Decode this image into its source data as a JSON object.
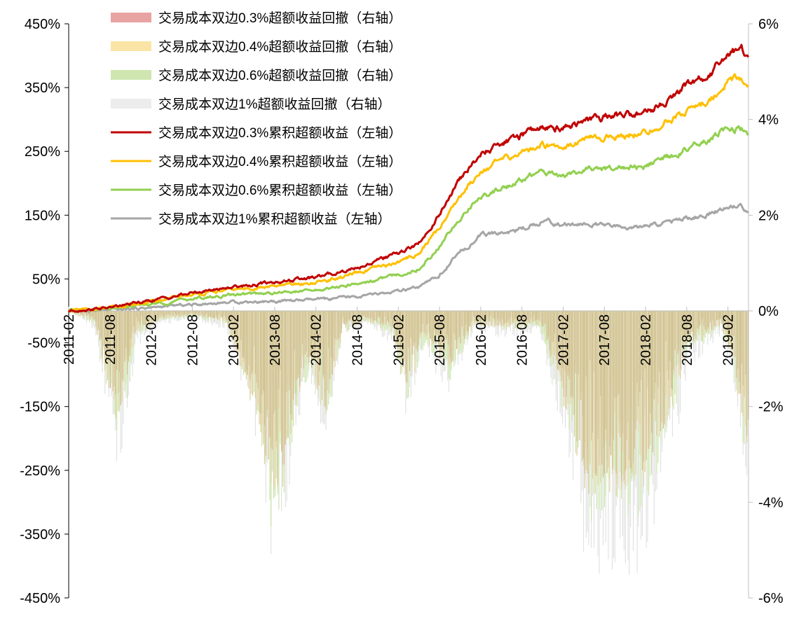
{
  "chart_data": {
    "type": "line+bar",
    "title": "",
    "left_axis": {
      "min": -450,
      "max": 450,
      "ticks": [
        450,
        350,
        250,
        150,
        50,
        -50,
        -150,
        -250,
        -350,
        -450
      ],
      "tick_labels": [
        "450%",
        "350%",
        "250%",
        "150%",
        "50%",
        "-50%",
        "-150%",
        "-250%",
        "-350%",
        "-450%"
      ]
    },
    "right_axis": {
      "min": -6,
      "max": 6,
      "ticks": [
        6,
        4,
        2,
        0,
        -2,
        -4,
        -6
      ],
      "tick_labels": [
        "6%",
        "4%",
        "2%",
        "0%",
        "-2%",
        "-4%",
        "-6%"
      ]
    },
    "x_start": "2011-02",
    "x_end": "2019-05",
    "x_tick_labels": [
      "2011-02",
      "2011-08",
      "2012-02",
      "2012-08",
      "2013-02",
      "2013-08",
      "2014-02",
      "2014-08",
      "2015-02",
      "2015-08",
      "2016-02",
      "2016-08",
      "2017-02",
      "2017-08",
      "2018-02",
      "2018-08",
      "2019-02"
    ],
    "legend": [
      {
        "label": "交易成本双边0.3%超额收益回撤（右轴）",
        "kind": "bar",
        "color": "#e8a3a3"
      },
      {
        "label": "交易成本双边0.4%超额收益回撤（右轴）",
        "kind": "bar",
        "color": "#fbe5a6"
      },
      {
        "label": "交易成本双边0.6%超额收益回撤（右轴）",
        "kind": "bar",
        "color": "#cfe6b0"
      },
      {
        "label": "交易成本双边1%超额收益回撤（右轴）",
        "kind": "bar",
        "color": "#ececec"
      },
      {
        "label": "交易成本双边0.3%累积超额收益（左轴）",
        "kind": "line",
        "color": "#c00000"
      },
      {
        "label": "交易成本双边0.4%累积超额收益（左轴）",
        "kind": "line",
        "color": "#ffc000"
      },
      {
        "label": "交易成本双边0.6%累积超额收益（左轴）",
        "kind": "line",
        "color": "#92d050"
      },
      {
        "label": "交易成本双边1%累积超额收益（左轴）",
        "kind": "line",
        "color": "#a6a6a6"
      }
    ],
    "line_series": [
      {
        "name": "交易成本双边0.3%累积超额收益（左轴）",
        "color": "#c00000",
        "x": [
          2011.08,
          2011.58,
          2012.08,
          2012.58,
          2013.08,
          2013.58,
          2014.08,
          2014.58,
          2015.08,
          2015.33,
          2015.58,
          2015.83,
          2016.08,
          2016.33,
          2016.58,
          2016.83,
          2017.08,
          2017.33,
          2017.58,
          2017.83,
          2018.08,
          2018.33,
          2018.58,
          2018.83,
          2019.08,
          2019.25,
          2019.33
        ],
        "values": [
          0,
          5,
          16,
          28,
          38,
          45,
          52,
          68,
          90,
          105,
          150,
          205,
          245,
          262,
          275,
          290,
          287,
          298,
          303,
          308,
          310,
          330,
          352,
          365,
          405,
          410,
          397
        ]
      },
      {
        "name": "交易成本双边0.4%累积超额收益（左轴）",
        "color": "#ffc000",
        "x": [
          2011.08,
          2011.58,
          2012.08,
          2012.58,
          2013.08,
          2013.58,
          2014.08,
          2014.58,
          2015.08,
          2015.33,
          2015.58,
          2015.83,
          2016.08,
          2016.33,
          2016.58,
          2016.83,
          2017.08,
          2017.33,
          2017.58,
          2017.83,
          2018.08,
          2018.33,
          2018.58,
          2018.83,
          2019.08,
          2019.25,
          2019.33
        ],
        "values": [
          0,
          4,
          14,
          25,
          33,
          38,
          44,
          58,
          76,
          90,
          130,
          180,
          220,
          235,
          248,
          262,
          258,
          268,
          272,
          276,
          278,
          295,
          315,
          326,
          360,
          365,
          353
        ]
      },
      {
        "name": "交易成本双边0.6%累积超额收益（左轴）",
        "color": "#92d050",
        "x": [
          2011.08,
          2011.58,
          2012.08,
          2012.58,
          2013.08,
          2013.58,
          2014.08,
          2014.58,
          2015.08,
          2015.33,
          2015.58,
          2015.83,
          2016.08,
          2016.33,
          2016.58,
          2016.83,
          2017.08,
          2017.33,
          2017.58,
          2017.83,
          2018.08,
          2018.33,
          2018.58,
          2018.83,
          2019.08,
          2019.25,
          2019.33
        ],
        "values": [
          0,
          3,
          10,
          19,
          25,
          28,
          32,
          42,
          56,
          66,
          100,
          145,
          180,
          192,
          205,
          218,
          212,
          220,
          222,
          225,
          226,
          238,
          255,
          265,
          285,
          283,
          274
        ]
      },
      {
        "name": "交易成本双边1%累积超额收益（左轴）",
        "color": "#a6a6a6",
        "x": [
          2011.08,
          2011.58,
          2012.08,
          2012.58,
          2013.08,
          2013.58,
          2014.08,
          2014.58,
          2015.08,
          2015.33,
          2015.58,
          2015.83,
          2016.08,
          2016.33,
          2016.58,
          2016.83,
          2017.08,
          2017.33,
          2017.58,
          2017.83,
          2018.08,
          2018.33,
          2018.58,
          2018.83,
          2019.08,
          2019.25,
          2019.33
        ],
        "values": [
          0,
          1,
          5,
          10,
          14,
          15,
          17,
          22,
          30,
          36,
          55,
          92,
          118,
          122,
          128,
          142,
          135,
          136,
          133,
          130,
          132,
          138,
          145,
          150,
          163,
          165,
          157
        ]
      }
    ],
    "drawdown_series": [
      {
        "name": "交易成本双边1%超额收益回撤（右轴）",
        "color": "#dcdcdc",
        "x": [
          2011.08,
          2011.4,
          2011.55,
          2011.7,
          2011.9,
          2012.2,
          2012.6,
          2013.0,
          2013.4,
          2013.55,
          2013.7,
          2013.85,
          2014.0,
          2014.2,
          2014.4,
          2014.7,
          2015.0,
          2015.2,
          2015.4,
          2015.7,
          2016.0,
          2016.4,
          2016.8,
          2017.0,
          2017.2,
          2017.4,
          2017.6,
          2017.8,
          2018.0,
          2018.2,
          2018.4,
          2018.6,
          2018.8,
          2019.0,
          2019.15,
          2019.33
        ],
        "values": [
          0,
          -0.4,
          -2.1,
          -3.5,
          -0.8,
          -0.3,
          -0.2,
          -0.4,
          -3.0,
          -5.3,
          -4.5,
          -2.5,
          -1.5,
          -2.8,
          -0.6,
          -0.3,
          -0.7,
          -2.4,
          -0.9,
          -1.8,
          -0.4,
          -0.6,
          -0.5,
          -2.0,
          -3.8,
          -5.8,
          -5.4,
          -5.7,
          -5.5,
          -4.7,
          -3.3,
          -1.2,
          -0.9,
          -0.6,
          -1.5,
          -4.1
        ]
      },
      {
        "name": "交易成本双边0.6%超额收益回撤（右轴）",
        "color": "#bfe09a",
        "x": [
          2011.08,
          2011.4,
          2011.55,
          2011.7,
          2011.9,
          2012.2,
          2012.6,
          2013.0,
          2013.4,
          2013.55,
          2013.7,
          2013.85,
          2014.0,
          2014.2,
          2014.4,
          2014.7,
          2015.0,
          2015.2,
          2015.4,
          2015.7,
          2016.0,
          2016.4,
          2016.8,
          2017.0,
          2017.2,
          2017.4,
          2017.6,
          2017.8,
          2018.0,
          2018.2,
          2018.4,
          2018.6,
          2018.8,
          2019.0,
          2019.15,
          2019.33
        ],
        "values": [
          0,
          -0.3,
          -1.8,
          -3.0,
          -0.6,
          -0.2,
          -0.15,
          -0.3,
          -2.8,
          -4.8,
          -4.0,
          -2.2,
          -1.3,
          -2.5,
          -0.5,
          -0.2,
          -0.6,
          -2.0,
          -0.7,
          -1.5,
          -0.3,
          -0.4,
          -0.4,
          -1.6,
          -3.0,
          -4.7,
          -4.2,
          -4.5,
          -4.3,
          -3.6,
          -2.5,
          -0.9,
          -0.7,
          -0.4,
          -1.2,
          -3.7
        ]
      },
      {
        "name": "交易成本双边0.4%超额收益回撤（右轴）",
        "color": "#d8c68a",
        "x": [
          2011.08,
          2011.4,
          2011.55,
          2011.7,
          2011.9,
          2012.2,
          2012.6,
          2013.0,
          2013.4,
          2013.55,
          2013.7,
          2013.85,
          2014.0,
          2014.2,
          2014.4,
          2014.7,
          2015.0,
          2015.2,
          2015.4,
          2015.7,
          2016.0,
          2016.4,
          2016.8,
          2017.0,
          2017.2,
          2017.4,
          2017.6,
          2017.8,
          2018.0,
          2018.2,
          2018.4,
          2018.6,
          2018.8,
          2019.0,
          2019.15,
          2019.33
        ],
        "values": [
          0,
          -0.3,
          -1.6,
          -2.6,
          -0.5,
          -0.2,
          -0.1,
          -0.3,
          -2.5,
          -4.3,
          -3.6,
          -2.0,
          -1.2,
          -2.3,
          -0.5,
          -0.2,
          -0.5,
          -1.8,
          -0.6,
          -1.3,
          -0.3,
          -0.4,
          -0.3,
          -1.4,
          -2.7,
          -4.2,
          -3.8,
          -4.0,
          -3.9,
          -3.2,
          -2.2,
          -0.8,
          -0.6,
          -0.4,
          -1.1,
          -3.4
        ]
      },
      {
        "name": "交易成本双边0.3%超额收益回撤（右轴）",
        "color": "#c4ad6e",
        "x": [
          2011.08,
          2011.4,
          2011.55,
          2011.7,
          2011.9,
          2012.2,
          2012.6,
          2013.0,
          2013.4,
          2013.55,
          2013.7,
          2013.85,
          2014.0,
          2014.2,
          2014.4,
          2014.7,
          2015.0,
          2015.2,
          2015.4,
          2015.7,
          2016.0,
          2016.4,
          2016.8,
          2017.0,
          2017.2,
          2017.4,
          2017.6,
          2017.8,
          2018.0,
          2018.2,
          2018.4,
          2018.6,
          2018.8,
          2019.0,
          2019.15,
          2019.33
        ],
        "values": [
          0,
          -0.2,
          -1.4,
          -2.3,
          -0.4,
          -0.15,
          -0.1,
          -0.2,
          -2.3,
          -4.0,
          -3.3,
          -1.8,
          -1.1,
          -2.1,
          -0.4,
          -0.15,
          -0.4,
          -1.6,
          -0.5,
          -1.2,
          -0.25,
          -0.35,
          -0.3,
          -1.3,
          -2.5,
          -3.9,
          -3.5,
          -3.7,
          -3.6,
          -3.0,
          -2.0,
          -0.7,
          -0.5,
          -0.3,
          -1.0,
          -3.3
        ]
      }
    ]
  }
}
